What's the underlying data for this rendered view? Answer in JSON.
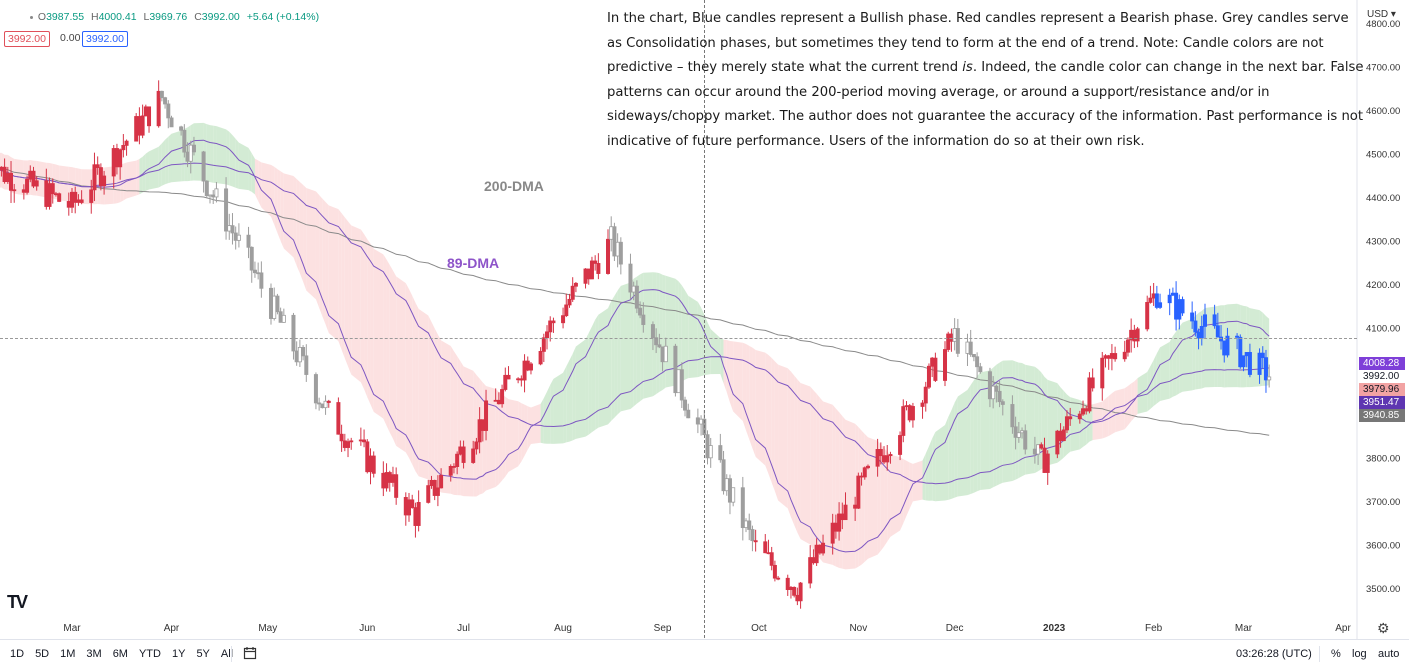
{
  "header": {
    "open_label": "O",
    "open": "3987.55",
    "high_label": "H",
    "high": "4000.41",
    "low_label": "L",
    "low": "3969.76",
    "close_label": "C",
    "close": "3992.00",
    "change": "+5.64 (+0.14%)",
    "sell_price": "3992.00",
    "spread": "0.00",
    "buy_price": "3992.00"
  },
  "annotation": {
    "text_before_italic": "In the chart, Blue candles represent a Bullish phase. Red candles represent a Bearish phase. Grey candles serve as Consolidation phases, but sometimes they tend to form at the end of a trend. Note: Candle colors are not predictive – they merely state what the current trend ",
    "italic": "is",
    "text_after_italic": ". Indeed, the candle color can change in the next bar. False patterns can occur around the 200-period moving average, or around a support/resistance and/or in sideways/choppy market. The author does not guarantee the accuracy of the information. Past performance is not indicative of future performance. Users of the information do so at their own risk."
  },
  "labels": {
    "ma200": "200-DMA",
    "ma89": "89-DMA",
    "currency": "USD ▾",
    "logo": "TV"
  },
  "price_tags": {
    "ma_upper": "4008.28",
    "last": "3992.00",
    "cloud_edge": "3979.96",
    "ma_mid": "3951.47",
    "ma_200": "3940.85"
  },
  "bottom_bar": {
    "ranges": [
      "1D",
      "5D",
      "1M",
      "3M",
      "6M",
      "YTD",
      "1Y",
      "5Y",
      "All"
    ],
    "time": "03:26:28 (UTC)",
    "percent": "%",
    "log": "log",
    "auto": "auto"
  },
  "chart_data": {
    "type": "candlestick",
    "y_ticks": [
      3500,
      3600,
      3700,
      3800,
      3900,
      4000,
      4100,
      4200,
      4300,
      4400,
      4500,
      4600,
      4700,
      4800
    ],
    "y_tick_labels": [
      "3500.00",
      "3600.00",
      "3700.00",
      "3800.00",
      "3900.00",
      "4000.00",
      "4100.00",
      "4200.00",
      "4300.00",
      "4400.00",
      "4500.00",
      "4600.00",
      "4700.00",
      "4800.00"
    ],
    "ylim": [
      3470,
      4830
    ],
    "x_labels": [
      "Mar",
      "Apr",
      "May",
      "Jun",
      "Jul",
      "Aug",
      "Sep",
      "Oct",
      "Nov",
      "Dec",
      "2023",
      "Feb",
      "Mar",
      "Apr"
    ],
    "x_label_dates": [
      "2022-03-01",
      "2022-04-01",
      "2022-05-01",
      "2022-06-01",
      "2022-07-01",
      "2022-08-01",
      "2022-09-01",
      "2022-10-01",
      "2022-11-01",
      "2022-12-01",
      "2023-01-01",
      "2023-02-01",
      "2023-03-01",
      "2023-04-01"
    ],
    "candle_colors": {
      "bullish": "#2962ff",
      "bearish": "#d63346",
      "consolidation": "#9e9e9e"
    },
    "ma200_color": "#8a8a8a",
    "ma89_color": "#7e57c2",
    "cloud_bull_color": "#c8e6c9",
    "cloud_bear_color": "#fbd9d9",
    "key_points": [
      {
        "date": "2022-03-01",
        "close": 4380,
        "phase": "bearish"
      },
      {
        "date": "2022-03-29",
        "close": 4630,
        "phase": "consolidation"
      },
      {
        "date": "2022-05-20",
        "close": 3900,
        "phase": "bearish"
      },
      {
        "date": "2022-06-16",
        "close": 3670,
        "phase": "bearish"
      },
      {
        "date": "2022-08-16",
        "close": 4300,
        "phase": "consolidation"
      },
      {
        "date": "2022-09-30",
        "close": 3590,
        "phase": "bearish"
      },
      {
        "date": "2022-10-13",
        "close": 3500,
        "phase": "bearish"
      },
      {
        "date": "2022-12-01",
        "close": 4080,
        "phase": "consolidation"
      },
      {
        "date": "2022-12-28",
        "close": 3790,
        "phase": "bearish"
      },
      {
        "date": "2023-02-02",
        "close": 4180,
        "phase": "bullish"
      },
      {
        "date": "2023-03-09",
        "close": 3992,
        "phase": "consolidation"
      }
    ]
  }
}
